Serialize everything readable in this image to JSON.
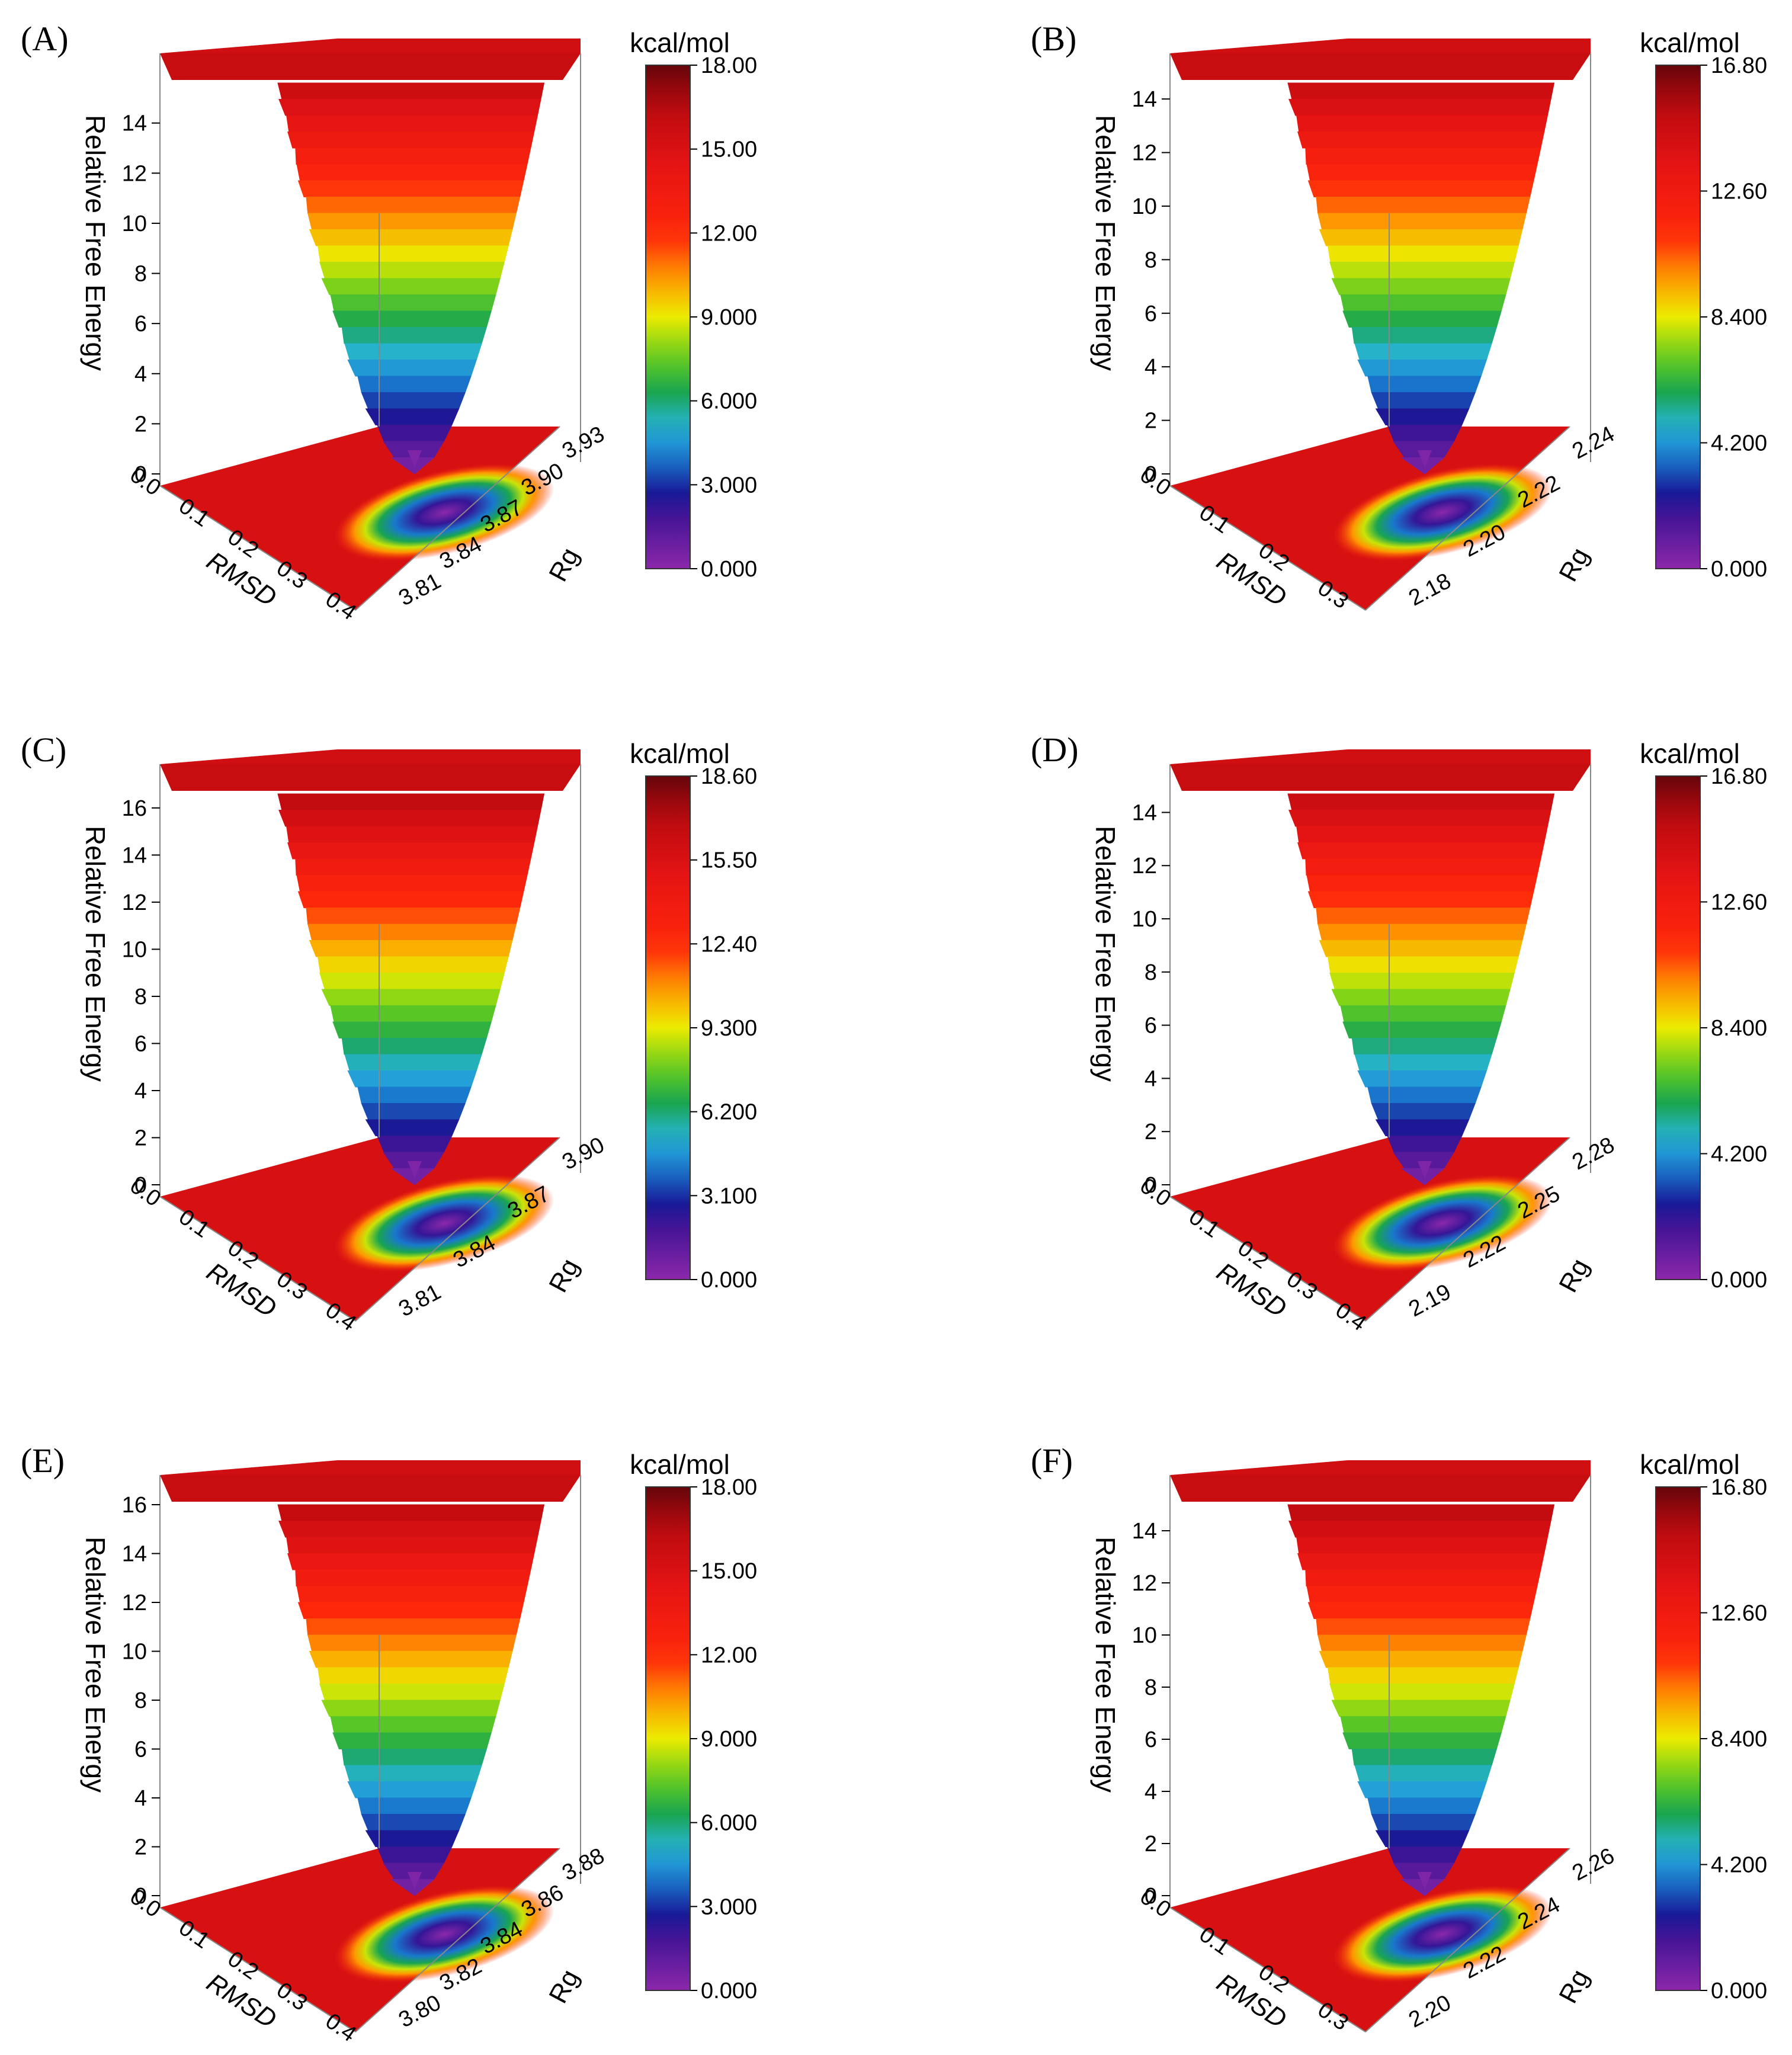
{
  "chart_data": [
    {
      "panel": "(A)",
      "type": "surface3d",
      "zlabel": "Relative Free Energy",
      "xlabel": "RMSD",
      "ylabel": "Rg",
      "z_ticks": [
        0,
        2,
        4,
        6,
        8,
        10,
        12,
        14
      ],
      "x_ticks": [
        "0.0",
        "0.1",
        "0.2",
        "0.3",
        "0.4"
      ],
      "y_ticks": [
        "3.81",
        "3.84",
        "3.87",
        "3.90",
        "3.93"
      ],
      "colorbar": {
        "title": "kcal/mol",
        "labels": [
          "18.00",
          "15.00",
          "12.00",
          "9.000",
          "6.000",
          "3.000",
          "0.000"
        ],
        "min": 0,
        "max": 18
      },
      "zmax": 15.6,
      "minimum": {
        "rmsd": 0.28,
        "rg": 3.885
      }
    },
    {
      "panel": "(B)",
      "type": "surface3d",
      "zlabel": "Relative Free Energy",
      "xlabel": "RMSD",
      "ylabel": "Rg",
      "z_ticks": [
        0,
        2,
        4,
        6,
        8,
        10,
        12,
        14
      ],
      "x_ticks": [
        "0.0",
        "0.1",
        "0.2",
        "0.3"
      ],
      "y_ticks": [
        "2.18",
        "2.20",
        "2.22",
        "2.24"
      ],
      "colorbar": {
        "title": "kcal/mol",
        "labels": [
          "16.80",
          "12.60",
          "8.400",
          "4.200",
          "0.000"
        ],
        "min": 0,
        "max": 16.8
      },
      "zmax": 14.6,
      "minimum": {
        "rmsd": 0.22,
        "rg": 2.215
      }
    },
    {
      "panel": "(C)",
      "type": "surface3d",
      "zlabel": "Relative Free Energy",
      "xlabel": "RMSD",
      "ylabel": "Rg",
      "z_ticks": [
        0,
        2,
        4,
        6,
        8,
        10,
        12,
        14,
        16
      ],
      "x_ticks": [
        "0.0",
        "0.1",
        "0.2",
        "0.3",
        "0.4"
      ],
      "y_ticks": [
        "3.81",
        "3.84",
        "3.87",
        "3.90"
      ],
      "colorbar": {
        "title": "kcal/mol",
        "labels": [
          "18.60",
          "15.50",
          "12.40",
          "9.300",
          "6.200",
          "3.100",
          "0.000"
        ],
        "min": 0,
        "max": 18.6
      },
      "zmax": 16.6,
      "minimum": {
        "rmsd": 0.26,
        "rg": 3.875
      }
    },
    {
      "panel": "(D)",
      "type": "surface3d",
      "zlabel": "Relative Free Energy",
      "xlabel": "RMSD",
      "ylabel": "Rg",
      "z_ticks": [
        0,
        2,
        4,
        6,
        8,
        10,
        12,
        14
      ],
      "x_ticks": [
        "0.0",
        "0.1",
        "0.2",
        "0.3",
        "0.4"
      ],
      "y_ticks": [
        "2.19",
        "2.22",
        "2.25",
        "2.28"
      ],
      "colorbar": {
        "title": "kcal/mol",
        "labels": [
          "16.80",
          "12.60",
          "8.400",
          "4.200",
          "0.000"
        ],
        "min": 0,
        "max": 16.8
      },
      "zmax": 14.7,
      "minimum": {
        "rmsd": 0.26,
        "rg": 2.245
      }
    },
    {
      "panel": "(E)",
      "type": "surface3d",
      "zlabel": "Relative Free Energy",
      "xlabel": "RMSD",
      "ylabel": "Rg",
      "z_ticks": [
        0,
        2,
        4,
        6,
        8,
        10,
        12,
        14,
        16
      ],
      "x_ticks": [
        "0.0",
        "0.1",
        "0.2",
        "0.3",
        "0.4"
      ],
      "y_ticks": [
        "3.80",
        "3.82",
        "3.84",
        "3.86",
        "3.88"
      ],
      "colorbar": {
        "title": "kcal/mol",
        "labels": [
          "18.00",
          "15.00",
          "12.00",
          "9.000",
          "6.000",
          "3.000",
          "0.000"
        ],
        "min": 0,
        "max": 18
      },
      "zmax": 16.0,
      "minimum": {
        "rmsd": 0.27,
        "rg": 3.855
      }
    },
    {
      "panel": "(F)",
      "type": "surface3d",
      "zlabel": "Relative Free Energy",
      "xlabel": "RMSD",
      "ylabel": "Rg",
      "z_ticks": [
        0,
        2,
        4,
        6,
        8,
        10,
        12,
        14
      ],
      "x_ticks": [
        "0.0",
        "0.1",
        "0.2",
        "0.3"
      ],
      "y_ticks": [
        "2.20",
        "2.22",
        "2.24",
        "2.26"
      ],
      "colorbar": {
        "title": "kcal/mol",
        "labels": [
          "16.80",
          "12.60",
          "8.400",
          "4.200",
          "0.000"
        ],
        "min": 0,
        "max": 16.8
      },
      "zmax": 15.0,
      "minimum": {
        "rmsd": 0.24,
        "rg": 2.225
      }
    }
  ]
}
